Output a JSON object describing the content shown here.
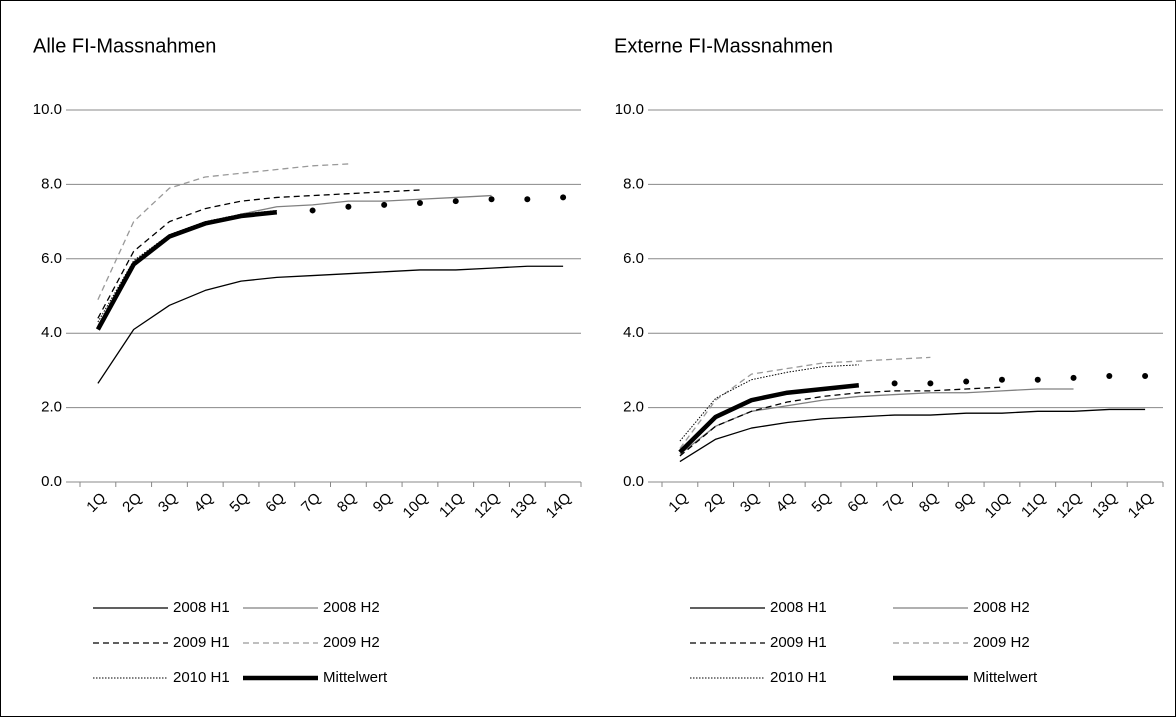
{
  "chart_data": [
    {
      "type": "line",
      "title": "Alle FI-Massnahmen",
      "categories": [
        "1Q",
        "2Q",
        "3Q",
        "4Q",
        "5Q",
        "6Q",
        "7Q",
        "8Q",
        "9Q",
        "10Q",
        "11Q",
        "12Q",
        "13Q",
        "14Q"
      ],
      "ylim": [
        0,
        10
      ],
      "yticks": [
        {
          "value": 0,
          "label": "0.0"
        },
        {
          "value": 2,
          "label": "2.0"
        },
        {
          "value": 4,
          "label": "4.0"
        },
        {
          "value": 6,
          "label": "6.0"
        },
        {
          "value": 8,
          "label": "8.0"
        },
        {
          "value": 10,
          "label": "10.0"
        }
      ],
      "grid": true,
      "series": [
        {
          "name": "2008 H1",
          "color": "#000000",
          "style": "solid",
          "values": [
            2.65,
            4.1,
            4.75,
            5.15,
            5.4,
            5.5,
            5.55,
            5.6,
            5.65,
            5.7,
            5.7,
            5.75,
            5.8,
            5.8
          ]
        },
        {
          "name": "2008 H2",
          "color": "#808080",
          "style": "solid",
          "values": [
            4.2,
            5.9,
            6.6,
            6.95,
            7.2,
            7.4,
            7.45,
            7.55,
            7.55,
            7.6,
            7.65,
            7.7,
            null,
            null
          ]
        },
        {
          "name": "2009 H1",
          "color": "#000000",
          "style": "dashed",
          "values": [
            4.4,
            6.2,
            7.0,
            7.35,
            7.55,
            7.65,
            7.7,
            7.75,
            7.8,
            7.85,
            null,
            null,
            null,
            null
          ]
        },
        {
          "name": "2009 H2",
          "color": "#999999",
          "style": "dashed",
          "values": [
            4.9,
            7.0,
            7.9,
            8.2,
            8.3,
            8.4,
            8.5,
            8.55,
            null,
            null,
            null,
            null,
            null,
            null
          ]
        },
        {
          "name": "2010 H1",
          "color": "#000000",
          "style": "dotted",
          "values": [
            4.3,
            5.95,
            6.65,
            7.0,
            7.2,
            7.3,
            null,
            null,
            null,
            null,
            null,
            null,
            null,
            null
          ]
        },
        {
          "name": "Mittelwert",
          "color": "#000000",
          "style": "thick",
          "values": [
            4.1,
            5.85,
            6.6,
            6.95,
            7.15,
            7.25,
            null,
            null,
            null,
            null,
            null,
            null,
            null,
            null
          ]
        },
        {
          "color": "#000000",
          "style": "dots",
          "values": [
            null,
            null,
            null,
            null,
            null,
            null,
            7.3,
            7.4,
            7.45,
            7.5,
            7.55,
            7.6,
            7.6,
            7.65
          ]
        }
      ]
    },
    {
      "type": "line",
      "title": "Externe FI-Massnahmen",
      "categories": [
        "1Q",
        "2Q",
        "3Q",
        "4Q",
        "5Q",
        "6Q",
        "7Q",
        "8Q",
        "9Q",
        "10Q",
        "11Q",
        "12Q",
        "13Q",
        "14Q"
      ],
      "ylim": [
        0,
        10
      ],
      "yticks": [
        {
          "value": 0,
          "label": "0.0"
        },
        {
          "value": 2,
          "label": "2.0"
        },
        {
          "value": 4,
          "label": "4.0"
        },
        {
          "value": 6,
          "label": "6.0"
        },
        {
          "value": 8,
          "label": "8.0"
        },
        {
          "value": 10,
          "label": "10.0"
        }
      ],
      "grid": true,
      "series": [
        {
          "name": "2008 H1",
          "color": "#000000",
          "style": "solid",
          "values": [
            0.55,
            1.15,
            1.45,
            1.6,
            1.7,
            1.75,
            1.8,
            1.8,
            1.85,
            1.85,
            1.9,
            1.9,
            1.95,
            1.95
          ]
        },
        {
          "name": "2008 H2",
          "color": "#808080",
          "style": "solid",
          "values": [
            0.75,
            1.5,
            1.9,
            2.05,
            2.2,
            2.3,
            2.35,
            2.4,
            2.4,
            2.45,
            2.5,
            2.5,
            null,
            null
          ]
        },
        {
          "name": "2009 H1",
          "color": "#000000",
          "style": "dashed",
          "values": [
            0.7,
            1.5,
            1.9,
            2.15,
            2.3,
            2.4,
            2.45,
            2.45,
            2.5,
            2.55,
            null,
            null,
            null,
            null
          ]
        },
        {
          "name": "2009 H2",
          "color": "#999999",
          "style": "dashed",
          "values": [
            0.9,
            2.2,
            2.9,
            3.05,
            3.2,
            3.25,
            3.3,
            3.35,
            null,
            null,
            null,
            null,
            null,
            null
          ]
        },
        {
          "name": "2010 H1",
          "color": "#000000",
          "style": "dotted",
          "values": [
            1.1,
            2.25,
            2.75,
            2.95,
            3.1,
            3.15,
            null,
            null,
            null,
            null,
            null,
            null,
            null,
            null
          ]
        },
        {
          "name": "Mittelwert",
          "color": "#000000",
          "style": "thick",
          "values": [
            0.8,
            1.75,
            2.2,
            2.4,
            2.5,
            2.6,
            null,
            null,
            null,
            null,
            null,
            null,
            null,
            null
          ]
        },
        {
          "color": "#000000",
          "style": "dots",
          "values": [
            null,
            null,
            null,
            null,
            null,
            null,
            2.65,
            2.65,
            2.7,
            2.75,
            2.75,
            2.8,
            2.85,
            2.85
          ]
        }
      ]
    }
  ]
}
